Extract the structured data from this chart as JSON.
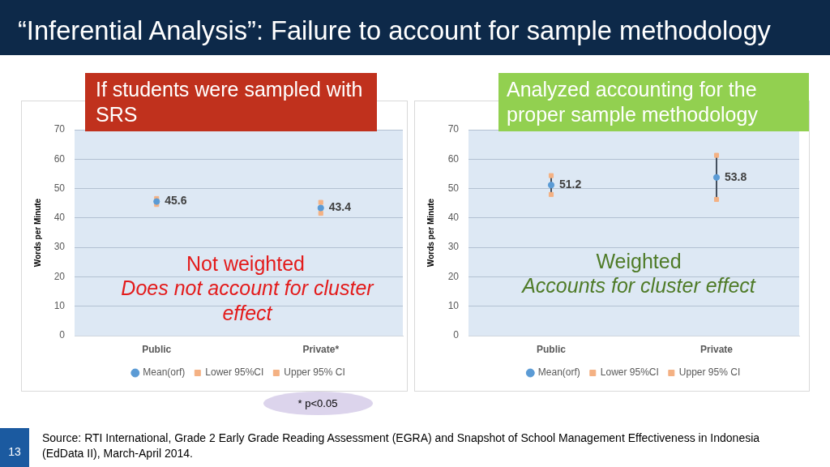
{
  "chart_data": [
    {
      "type": "scatter",
      "title": "“Inferential Analysis”: Failure to account for sample methodology",
      "subtitle": "If students were sampled with SRS",
      "ylabel": "Words per Minute",
      "categories": [
        "Public",
        "Private*"
      ],
      "series": [
        {
          "name": "Mean(orf)",
          "color": "#5b9bd5",
          "marker": "circle",
          "values": [
            45.6,
            43.4
          ],
          "value_labels": [
            "45.6",
            "43.4"
          ]
        },
        {
          "name": "Lower 95%CI",
          "color": "#f4b183",
          "marker": "square",
          "values": [
            44.6,
            41.6
          ]
        },
        {
          "name": "Upper 95% CI",
          "color": "#f4b183",
          "marker": "square",
          "values": [
            46.6,
            45.3
          ]
        }
      ],
      "ylim": [
        0,
        70
      ],
      "yticks": [
        0,
        10,
        20,
        30,
        40,
        50,
        60,
        70
      ],
      "grid": "y",
      "legend": "bottom",
      "annotations": [
        "Not weighted",
        "Does not account for cluster effect",
        "* p<0.05",
        "13",
        "Source: RTI International, Grade 2 Early Grade Reading Assessment (EGRA) and Snapshot of School Management Effectiveness in Indonesia (EdData II), March-April 2014."
      ]
    },
    {
      "type": "scatter",
      "subtitle": "Analyzed accounting for the proper sample methodology",
      "ylabel": "Words per Minute",
      "categories": [
        "Public",
        "Private"
      ],
      "series": [
        {
          "name": "Mean(orf)",
          "color": "#5b9bd5",
          "marker": "circle",
          "values": [
            51.2,
            53.8
          ],
          "value_labels": [
            "51.2",
            "53.8"
          ]
        },
        {
          "name": "Lower 95%CI",
          "color": "#f4b183",
          "marker": "square",
          "values": [
            48.0,
            46.3
          ]
        },
        {
          "name": "Upper 95% CI",
          "color": "#f4b183",
          "marker": "square",
          "values": [
            54.4,
            61.3
          ]
        },
        {
          "type": "line",
          "color": "#44505f",
          "marker": "none",
          "x": [
            "Public",
            "Public"
          ],
          "values": [
            48.0,
            54.4
          ]
        },
        {
          "type": "line",
          "color": "#44505f",
          "marker": "none",
          "x": [
            "Private",
            "Private"
          ],
          "values": [
            46.3,
            61.3
          ]
        }
      ],
      "ylim": [
        0,
        70
      ],
      "yticks": [
        0,
        10,
        20,
        30,
        40,
        50,
        60,
        70
      ],
      "grid": "y",
      "legend": "bottom",
      "annotations": [
        "Weighted",
        "Accounts for cluster effect"
      ]
    }
  ]
}
